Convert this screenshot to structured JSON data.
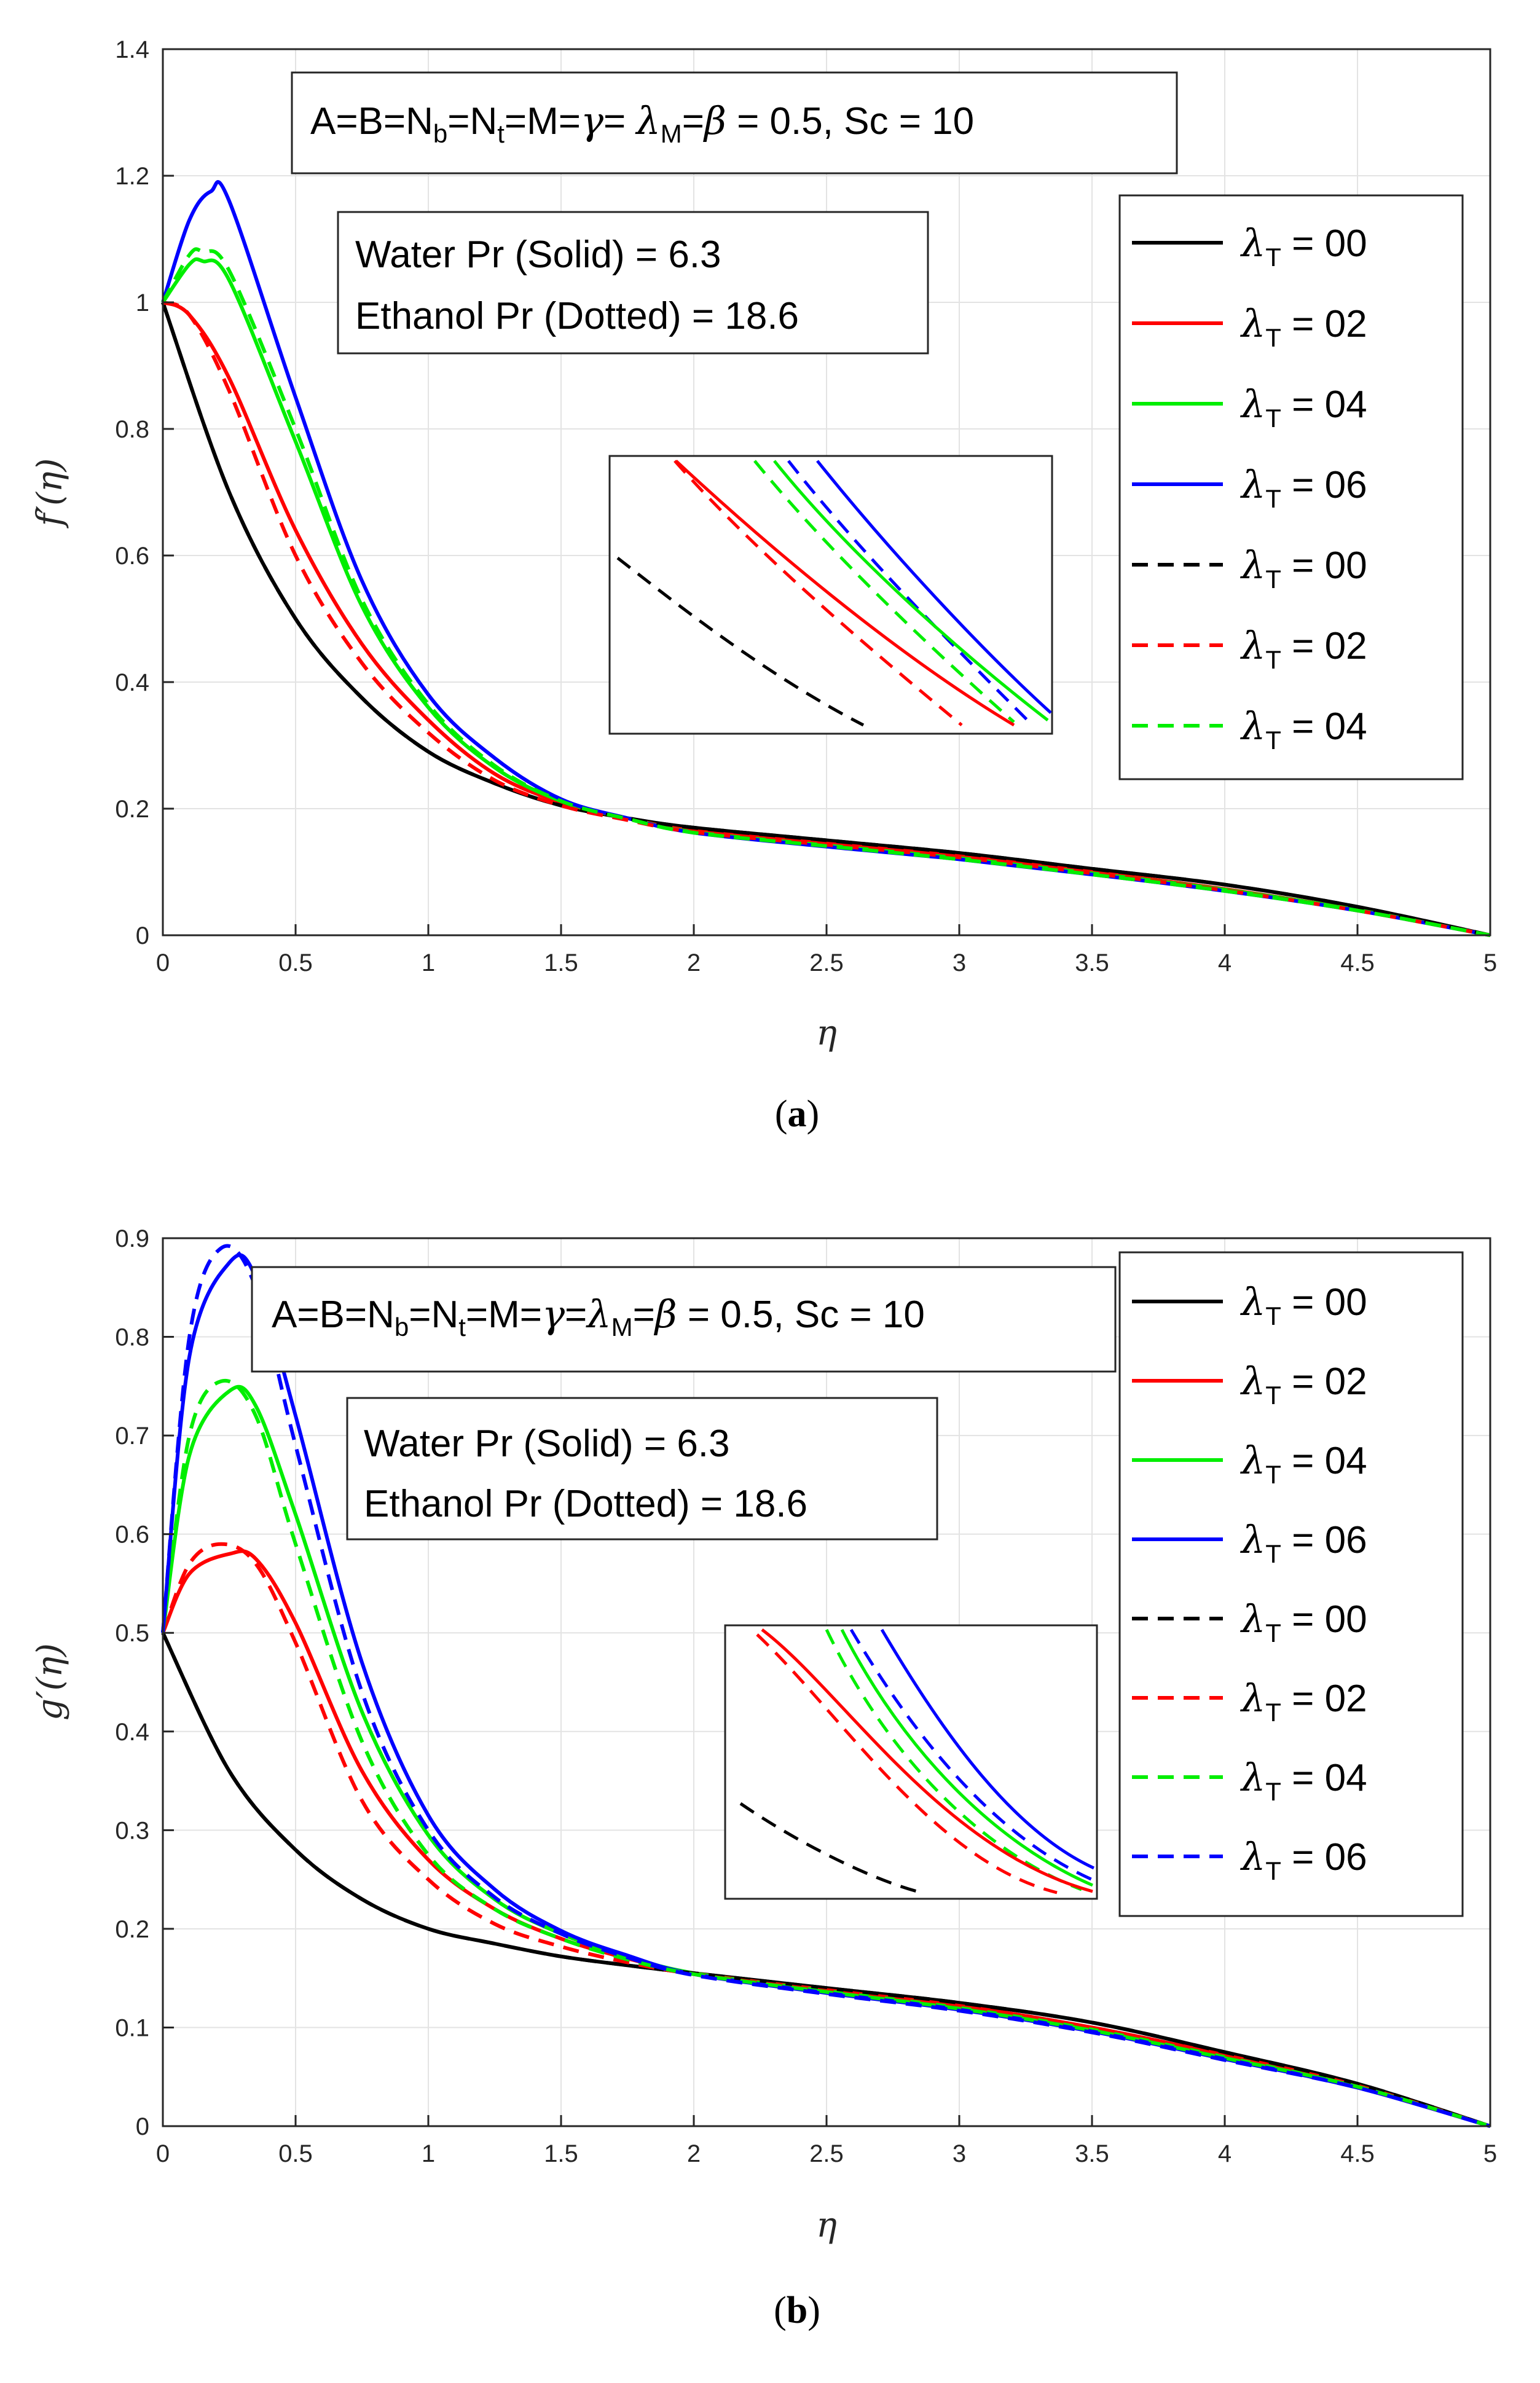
{
  "figure": {
    "panel_a_caption": {
      "open": "(",
      "letter": "a",
      "close": ")"
    },
    "panel_b_caption": {
      "open": "(",
      "letter": "b",
      "close": ")"
    }
  },
  "chart_data": [
    {
      "type": "line",
      "panel": "a",
      "xlabel": "η",
      "ylabel": "f′(η)",
      "xlim": [
        0,
        5
      ],
      "ylim": [
        0,
        1.4
      ],
      "xticks": [
        "0",
        "0.5",
        "1",
        "1.5",
        "2",
        "2.5",
        "3",
        "3.5",
        "4",
        "4.5",
        "5"
      ],
      "yticks": [
        "0",
        "0.2",
        "0.4",
        "0.6",
        "0.8",
        "1",
        "1.2",
        "1.4"
      ],
      "grid": true,
      "params_box": {
        "p1": "A=B=N",
        "s1": "b",
        "p2": "=N",
        "s2": "t",
        "p3": "=M=",
        "gamma": "γ",
        "p4": "= ",
        "lambda": "λ",
        "s3": "M",
        "p5": "=",
        "beta": "β",
        "p6": " = 0.5, Sc = 10"
      },
      "prandtl_box": {
        "line1": "Water Pr (Solid) = 6.3",
        "line2": "Ethanol Pr (Dotted) = 18.6"
      },
      "legend": [
        {
          "sym": "λ",
          "sub": "T",
          "text": " = 00",
          "color": "#000000",
          "style": "solid"
        },
        {
          "sym": "λ",
          "sub": "T",
          "text": " = 02",
          "color": "#ff0000",
          "style": "solid"
        },
        {
          "sym": "λ",
          "sub": "T",
          "text": " = 04",
          "color": "#00ee00",
          "style": "solid"
        },
        {
          "sym": "λ",
          "sub": "T",
          "text": " = 06",
          "color": "#0000ff",
          "style": "solid"
        },
        {
          "sym": "λ",
          "sub": "T",
          "text": " = 00",
          "color": "#000000",
          "style": "dashed"
        },
        {
          "sym": "λ",
          "sub": "T",
          "text": " = 02",
          "color": "#ff0000",
          "style": "dashed"
        },
        {
          "sym": "λ",
          "sub": "T",
          "text": " = 04",
          "color": "#00ee00",
          "style": "dashed"
        }
      ],
      "series": [
        {
          "name": "λT = 00 (Water)",
          "color": "#000000",
          "style": "solid",
          "x": [
            0,
            0.25,
            0.5,
            0.75,
            1,
            1.25,
            1.5,
            1.75,
            2,
            2.5,
            3,
            3.5,
            4,
            4.5,
            5
          ],
          "y": [
            1.0,
            0.7,
            0.5,
            0.375,
            0.29,
            0.24,
            0.205,
            0.185,
            0.17,
            0.15,
            0.13,
            0.105,
            0.08,
            0.045,
            0.0
          ]
        },
        {
          "name": "λT = 02 (Water)",
          "color": "#ff0000",
          "style": "solid",
          "x": [
            0,
            0.1,
            0.25,
            0.5,
            0.75,
            1,
            1.25,
            1.5,
            1.75,
            2,
            2.5,
            3,
            3.5,
            4,
            4.5,
            5
          ],
          "y": [
            1.0,
            0.98,
            0.88,
            0.64,
            0.46,
            0.34,
            0.255,
            0.21,
            0.185,
            0.165,
            0.145,
            0.125,
            0.1,
            0.073,
            0.04,
            0.0
          ]
        },
        {
          "name": "λT = 04 (Water)",
          "color": "#00ee00",
          "style": "solid",
          "x": [
            0,
            0.1,
            0.15,
            0.25,
            0.5,
            0.75,
            1,
            1.25,
            1.5,
            1.75,
            2,
            2.5,
            3,
            3.5,
            4,
            4.5,
            5
          ],
          "y": [
            1.0,
            1.06,
            1.065,
            1.035,
            0.78,
            0.52,
            0.36,
            0.265,
            0.212,
            0.185,
            0.163,
            0.142,
            0.122,
            0.098,
            0.072,
            0.04,
            0.0
          ]
        },
        {
          "name": "λT = 06 (Water)",
          "color": "#0000ff",
          "style": "solid",
          "x": [
            0,
            0.1,
            0.18,
            0.25,
            0.5,
            0.75,
            1,
            1.25,
            1.5,
            1.75,
            2,
            2.5,
            3,
            3.5,
            4,
            4.5,
            5
          ],
          "y": [
            1.0,
            1.13,
            1.175,
            1.16,
            0.85,
            0.56,
            0.38,
            0.28,
            0.215,
            0.185,
            0.162,
            0.14,
            0.12,
            0.096,
            0.07,
            0.039,
            0.0
          ]
        },
        {
          "name": "λT = 00 (Ethanol)",
          "color": "#000000",
          "style": "dashed",
          "x": [
            0,
            0.25,
            0.5,
            0.75,
            1,
            1.25,
            1.5,
            1.75,
            2,
            2.5,
            3,
            3.5,
            4,
            4.5,
            5
          ],
          "y": [
            1.0,
            0.7,
            0.5,
            0.375,
            0.29,
            0.24,
            0.205,
            0.185,
            0.17,
            0.15,
            0.13,
            0.105,
            0.08,
            0.045,
            0.0
          ]
        },
        {
          "name": "λT = 02 (Ethanol)",
          "color": "#ff0000",
          "style": "dashed",
          "x": [
            0,
            0.1,
            0.25,
            0.5,
            0.75,
            1,
            1.25,
            1.5,
            1.75,
            2,
            2.5,
            3,
            3.5,
            4,
            4.5,
            5
          ],
          "y": [
            1.0,
            0.98,
            0.86,
            0.6,
            0.43,
            0.32,
            0.245,
            0.205,
            0.182,
            0.163,
            0.143,
            0.123,
            0.098,
            0.071,
            0.039,
            0.0
          ]
        },
        {
          "name": "λT = 04 (Ethanol)",
          "color": "#00ee00",
          "style": "dashed",
          "x": [
            0,
            0.1,
            0.15,
            0.25,
            0.5,
            0.75,
            1,
            1.25,
            1.5,
            1.75,
            2,
            2.5,
            3,
            3.5,
            4,
            4.5,
            5
          ],
          "y": [
            1.0,
            1.075,
            1.08,
            1.05,
            0.8,
            0.53,
            0.365,
            0.268,
            0.212,
            0.184,
            0.162,
            0.141,
            0.12,
            0.096,
            0.07,
            0.039,
            0.0
          ]
        }
      ]
    },
    {
      "type": "line",
      "panel": "b",
      "xlabel": "η",
      "ylabel": "g′(η)",
      "xlim": [
        0,
        5
      ],
      "ylim": [
        0,
        0.9
      ],
      "xticks": [
        "0",
        "0.5",
        "1",
        "1.5",
        "2",
        "2.5",
        "3",
        "3.5",
        "4",
        "4.5",
        "5"
      ],
      "yticks": [
        "0",
        "0.1",
        "0.2",
        "0.3",
        "0.4",
        "0.5",
        "0.6",
        "0.7",
        "0.8",
        "0.9"
      ],
      "grid": true,
      "params_box": {
        "p1": "A=B=N",
        "s1": "b",
        "p2": "=N",
        "s2": "t",
        "p3": "=M=",
        "gamma": "γ",
        "p4": "=",
        "lambda": "λ",
        "s3": "M",
        "p5": "=",
        "beta": "β",
        "p6": " = 0.5, Sc = 10"
      },
      "prandtl_box": {
        "line1": "Water Pr (Solid) = 6.3",
        "line2": "Ethanol Pr (Dotted) = 18.6"
      },
      "legend": [
        {
          "sym": "λ",
          "sub": "T",
          "text": " = 00",
          "color": "#000000",
          "style": "solid"
        },
        {
          "sym": "λ",
          "sub": "T",
          "text": " = 02",
          "color": "#ff0000",
          "style": "solid"
        },
        {
          "sym": "λ",
          "sub": "T",
          "text": " = 04",
          "color": "#00ee00",
          "style": "solid"
        },
        {
          "sym": "λ",
          "sub": "T",
          "text": " = 06",
          "color": "#0000ff",
          "style": "solid"
        },
        {
          "sym": "λ",
          "sub": "T",
          "text": " = 00",
          "color": "#000000",
          "style": "dashed"
        },
        {
          "sym": "λ",
          "sub": "T",
          "text": " = 02",
          "color": "#ff0000",
          "style": "dashed"
        },
        {
          "sym": "λ",
          "sub": "T",
          "text": " = 04",
          "color": "#00ee00",
          "style": "dashed"
        },
        {
          "sym": "λ",
          "sub": "T",
          "text": " = 06",
          "color": "#0000ff",
          "style": "dashed"
        }
      ],
      "series": [
        {
          "name": "λT = 00 (Water)",
          "color": "#000000",
          "style": "solid",
          "x": [
            0,
            0.25,
            0.5,
            0.75,
            1,
            1.25,
            1.5,
            1.75,
            2,
            2.5,
            3,
            3.5,
            4,
            4.5,
            5
          ],
          "y": [
            0.5,
            0.36,
            0.28,
            0.23,
            0.2,
            0.185,
            0.172,
            0.163,
            0.155,
            0.14,
            0.125,
            0.105,
            0.075,
            0.043,
            0.0
          ]
        },
        {
          "name": "λT = 02 (Water)",
          "color": "#ff0000",
          "style": "solid",
          "x": [
            0,
            0.1,
            0.25,
            0.35,
            0.5,
            0.75,
            1,
            1.25,
            1.5,
            1.75,
            2,
            2.5,
            3,
            3.5,
            4,
            4.5,
            5
          ],
          "y": [
            0.5,
            0.56,
            0.58,
            0.575,
            0.51,
            0.36,
            0.27,
            0.22,
            0.19,
            0.17,
            0.155,
            0.138,
            0.122,
            0.1,
            0.072,
            0.041,
            0.0
          ]
        },
        {
          "name": "λT = 04 (Water)",
          "color": "#00ee00",
          "style": "solid",
          "x": [
            0,
            0.1,
            0.25,
            0.35,
            0.5,
            0.75,
            1,
            1.25,
            1.5,
            1.75,
            2,
            2.5,
            3,
            3.5,
            4,
            4.5,
            5
          ],
          "y": [
            0.5,
            0.68,
            0.745,
            0.73,
            0.62,
            0.42,
            0.295,
            0.23,
            0.195,
            0.172,
            0.155,
            0.137,
            0.12,
            0.098,
            0.07,
            0.04,
            0.0
          ]
        },
        {
          "name": "λT = 06 (Water)",
          "color": "#0000ff",
          "style": "solid",
          "x": [
            0,
            0.1,
            0.25,
            0.35,
            0.5,
            0.75,
            1,
            1.25,
            1.5,
            1.75,
            2,
            2.5,
            3,
            3.5,
            4,
            4.5,
            5
          ],
          "y": [
            0.5,
            0.78,
            0.875,
            0.86,
            0.72,
            0.47,
            0.315,
            0.24,
            0.198,
            0.173,
            0.154,
            0.135,
            0.118,
            0.096,
            0.068,
            0.039,
            0.0
          ]
        },
        {
          "name": "λT = 00 (Ethanol)",
          "color": "#000000",
          "style": "dashed",
          "x": [
            0,
            0.25,
            0.5,
            0.75,
            1,
            1.25,
            1.5,
            1.75,
            2,
            2.5,
            3,
            3.5,
            4,
            4.5,
            5
          ],
          "y": [
            0.5,
            0.36,
            0.28,
            0.23,
            0.2,
            0.185,
            0.172,
            0.163,
            0.155,
            0.14,
            0.125,
            0.105,
            0.075,
            0.043,
            0.0
          ]
        },
        {
          "name": "λT = 02 (Ethanol)",
          "color": "#ff0000",
          "style": "dashed",
          "x": [
            0,
            0.1,
            0.22,
            0.35,
            0.5,
            0.75,
            1,
            1.25,
            1.5,
            1.75,
            2,
            2.5,
            3,
            3.5,
            4,
            4.5,
            5
          ],
          "y": [
            0.5,
            0.57,
            0.59,
            0.57,
            0.49,
            0.33,
            0.25,
            0.205,
            0.182,
            0.166,
            0.154,
            0.137,
            0.12,
            0.098,
            0.07,
            0.04,
            0.0
          ]
        },
        {
          "name": "λT = 04 (Ethanol)",
          "color": "#00ee00",
          "style": "dashed",
          "x": [
            0,
            0.1,
            0.22,
            0.35,
            0.5,
            0.75,
            1,
            1.25,
            1.5,
            1.75,
            2,
            2.5,
            3,
            3.5,
            4,
            4.5,
            5
          ],
          "y": [
            0.5,
            0.7,
            0.755,
            0.72,
            0.59,
            0.39,
            0.275,
            0.22,
            0.19,
            0.169,
            0.154,
            0.136,
            0.119,
            0.097,
            0.069,
            0.04,
            0.0
          ]
        },
        {
          "name": "λT = 06 (Ethanol)",
          "color": "#0000ff",
          "style": "dashed",
          "x": [
            0,
            0.1,
            0.22,
            0.35,
            0.5,
            0.75,
            1,
            1.25,
            1.5,
            1.75,
            2,
            2.5,
            3,
            3.5,
            4,
            4.5,
            5
          ],
          "y": [
            0.5,
            0.8,
            0.89,
            0.85,
            0.69,
            0.44,
            0.3,
            0.232,
            0.195,
            0.171,
            0.153,
            0.134,
            0.117,
            0.095,
            0.067,
            0.039,
            0.0
          ]
        }
      ]
    }
  ]
}
